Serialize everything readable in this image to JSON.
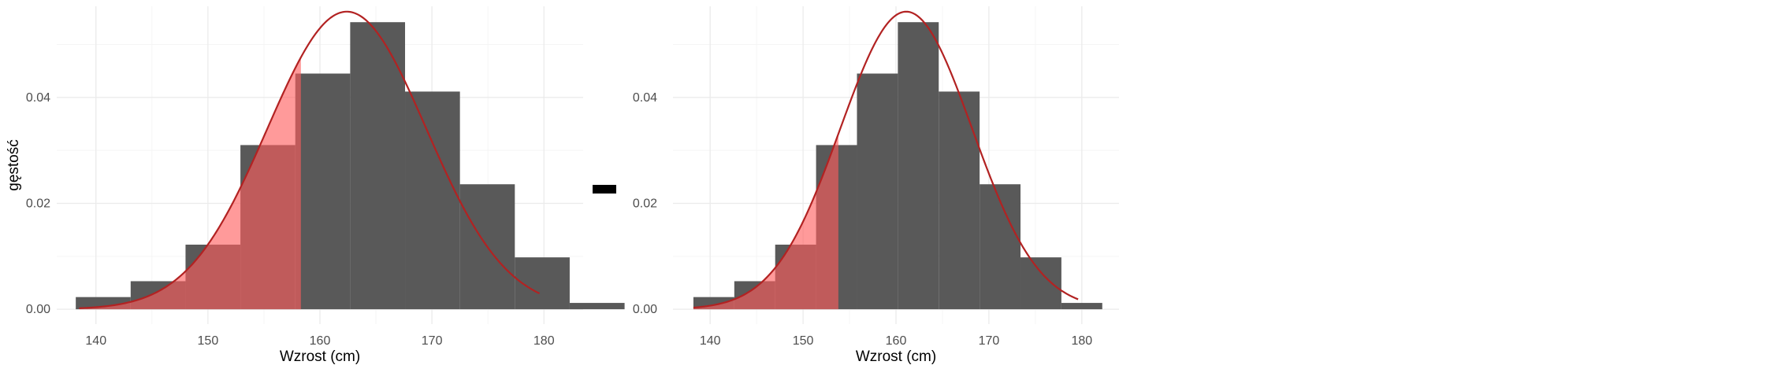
{
  "colors": {
    "bar": "#595959",
    "curve": "#b22222",
    "fill": "#ff5c5c",
    "fill_over": "#a82a2a",
    "grid_major": "#ebebeb",
    "grid_minor": "#f5f5f5",
    "operator": "#000000"
  },
  "operator": "minus",
  "chart_data": [
    {
      "type": "bar",
      "subtype": "histogram-with-density",
      "xlabel": "Wzrost (cm)",
      "ylabel": "gęstość",
      "xlim": [
        136.5,
        183.5
      ],
      "ylim": [
        -0.0028,
        0.0572
      ],
      "x_breaks": [
        140,
        150,
        160,
        170,
        180
      ],
      "x_tick_labels": [
        "140",
        "150",
        "160",
        "170",
        "180"
      ],
      "y_breaks": [
        0.0,
        0.02,
        0.04
      ],
      "y_tick_labels": [
        "0.00",
        "0.02",
        "0.04"
      ],
      "grid": true,
      "bin_width": 4.9,
      "bin_starts": [
        138.2,
        143.1,
        148.0,
        152.9,
        157.8,
        162.7,
        167.6,
        172.5,
        177.4,
        182.3
      ],
      "densities": [
        0.0023,
        0.0053,
        0.0122,
        0.031,
        0.0445,
        0.0542,
        0.0411,
        0.0236,
        0.0098,
        0.0012
      ],
      "curve": {
        "distribution": "normal",
        "mean": 162.4,
        "sd": 7.1,
        "x_range": [
          138.5,
          179.6
        ]
      },
      "shaded_upper_bound": 158.3
    },
    {
      "type": "bar",
      "subtype": "histogram-with-density",
      "xlabel": "Wzrost (cm)",
      "ylabel": "",
      "xlim": [
        136.0,
        184.0
      ],
      "ylim": [
        -0.0028,
        0.0572
      ],
      "x_breaks": [
        140,
        150,
        160,
        170,
        180
      ],
      "x_tick_labels": [
        "140",
        "150",
        "160",
        "170",
        "180"
      ],
      "y_breaks": [
        0.0,
        0.02,
        0.04
      ],
      "y_tick_labels": [
        "0.00",
        "0.02",
        "0.04"
      ],
      "grid": true,
      "bin_width": 4.4,
      "bin_starts": [
        138.2,
        142.6,
        147.0,
        151.4,
        155.8,
        160.2,
        164.6,
        169.0,
        173.4,
        177.8
      ],
      "densities": [
        0.0023,
        0.0053,
        0.0122,
        0.031,
        0.0445,
        0.0542,
        0.0411,
        0.0236,
        0.0098,
        0.0012
      ],
      "curve": {
        "distribution": "normal",
        "mean": 161.1,
        "sd": 7.1,
        "x_range": [
          138.2,
          179.6
        ]
      },
      "shaded_upper_bound": 153.8
    }
  ]
}
